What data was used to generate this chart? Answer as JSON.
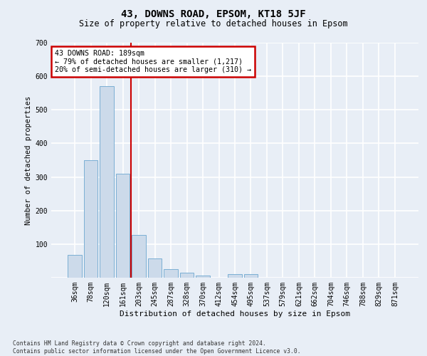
{
  "title": "43, DOWNS ROAD, EPSOM, KT18 5JF",
  "subtitle": "Size of property relative to detached houses in Epsom",
  "xlabel": "Distribution of detached houses by size in Epsom",
  "ylabel": "Number of detached properties",
  "categories": [
    "36sqm",
    "78sqm",
    "120sqm",
    "161sqm",
    "203sqm",
    "245sqm",
    "287sqm",
    "328sqm",
    "370sqm",
    "412sqm",
    "454sqm",
    "495sqm",
    "537sqm",
    "579sqm",
    "621sqm",
    "662sqm",
    "704sqm",
    "746sqm",
    "788sqm",
    "829sqm",
    "871sqm"
  ],
  "values": [
    68,
    350,
    570,
    310,
    128,
    57,
    25,
    15,
    7,
    0,
    10,
    10,
    0,
    0,
    0,
    0,
    0,
    0,
    0,
    0,
    0
  ],
  "bar_color": "#ccdaea",
  "bar_edge_color": "#7bafd4",
  "annotation_text": "43 DOWNS ROAD: 189sqm\n← 79% of detached houses are smaller (1,217)\n20% of semi-detached houses are larger (310) →",
  "annotation_box_color": "#ffffff",
  "annotation_box_edge": "#cc0000",
  "red_line_color": "#cc0000",
  "ylim": [
    0,
    700
  ],
  "yticks": [
    0,
    100,
    200,
    300,
    400,
    500,
    600,
    700
  ],
  "footnote": "Contains HM Land Registry data © Crown copyright and database right 2024.\nContains public sector information licensed under the Open Government Licence v3.0.",
  "background_color": "#e8eef6",
  "grid_color": "#ffffff",
  "title_fontsize": 10,
  "subtitle_fontsize": 8.5,
  "tick_fontsize": 7,
  "ylabel_fontsize": 7.5,
  "xlabel_fontsize": 8,
  "footnote_fontsize": 5.8,
  "annot_fontsize": 7.2
}
